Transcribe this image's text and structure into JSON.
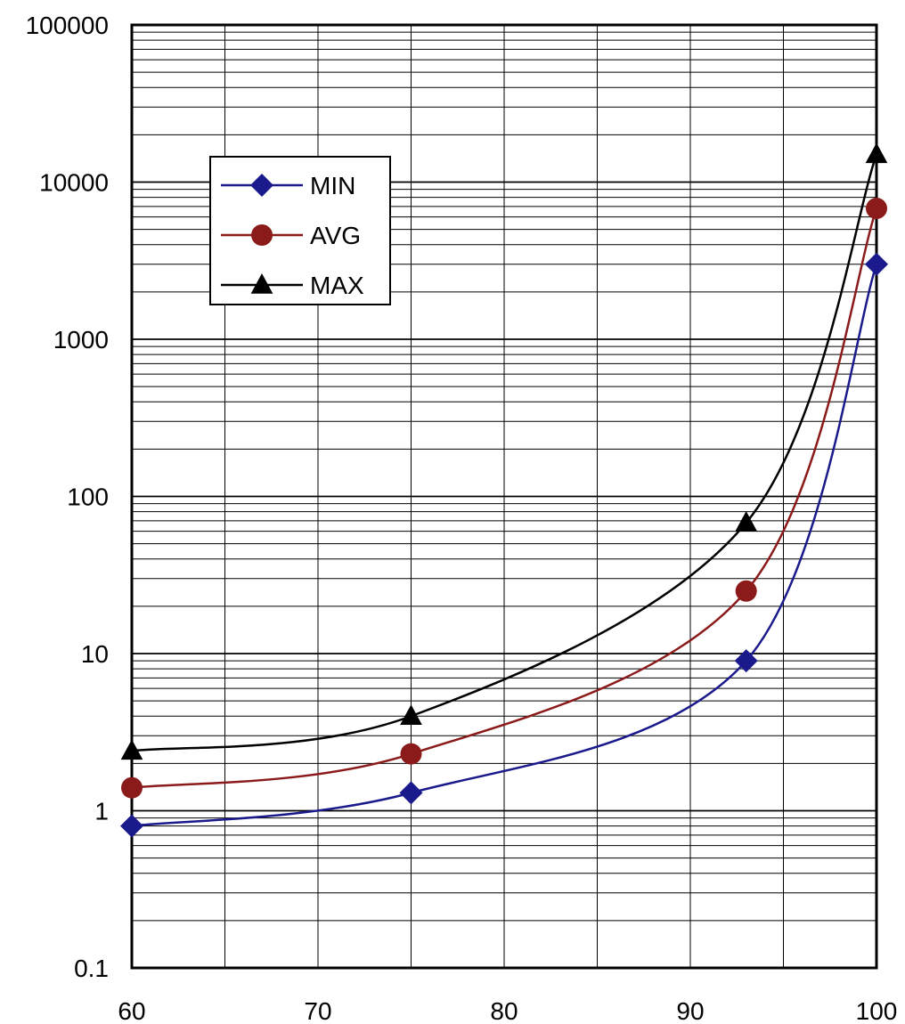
{
  "chart_data": {
    "type": "line",
    "title": "",
    "xlabel": "",
    "ylabel": "",
    "x_scale": "linear",
    "y_scale": "log",
    "xlim": [
      60,
      100
    ],
    "ylim": [
      0.1,
      100000
    ],
    "grid": true,
    "x_ticks": [
      60,
      70,
      80,
      90,
      100
    ],
    "x_tick_labels": [
      "60",
      "70",
      "80",
      "90",
      "100"
    ],
    "y_ticks": [
      0.1,
      1,
      10,
      100,
      1000,
      10000,
      100000
    ],
    "y_tick_labels": [
      "0.1",
      "1",
      "10",
      "100",
      "1000",
      "10000",
      "100000"
    ],
    "legend_position": "upper-left",
    "x": [
      60,
      75,
      93,
      100
    ],
    "series": [
      {
        "name": "MIN",
        "values": [
          0.8,
          1.3,
          9,
          3000
        ],
        "color": "#1a1a8c",
        "marker": "diamond"
      },
      {
        "name": "AVG",
        "values": [
          1.4,
          2.3,
          25,
          6800
        ],
        "color": "#8b1a1a",
        "marker": "circle"
      },
      {
        "name": "MAX",
        "values": [
          2.4,
          4.0,
          68,
          15000
        ],
        "color": "#000000",
        "marker": "triangle"
      }
    ]
  }
}
